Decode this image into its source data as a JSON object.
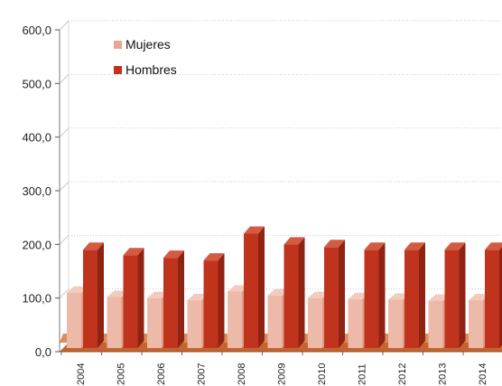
{
  "chart_data": {
    "type": "bar",
    "categories": [
      "2004",
      "2005",
      "2006",
      "2007",
      "2008",
      "2009",
      "2010",
      "2011",
      "2012",
      "2013",
      "2014"
    ],
    "series": [
      {
        "name": "Mujeres",
        "color": "#E8A593",
        "values": [
          110,
          102,
          100,
          96,
          112,
          105,
          100,
          98,
          97,
          95,
          96
        ]
      },
      {
        "name": "Hombres",
        "color": "#C0341E",
        "values": [
          190,
          180,
          175,
          170,
          220,
          200,
          195,
          190,
          190,
          190,
          190
        ]
      }
    ],
    "yticks": [
      "600,0",
      "500,0",
      "400,0",
      "300,0",
      "200,0",
      "100,0",
      "0,0"
    ],
    "ylim": [
      0,
      600
    ],
    "grid": true,
    "legend": "top-left"
  }
}
